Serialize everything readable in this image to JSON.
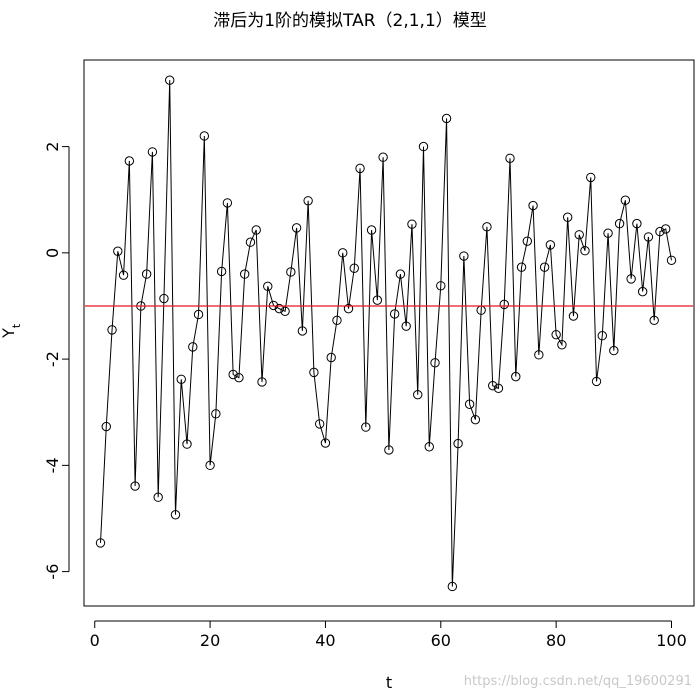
{
  "chart_data": {
    "type": "line",
    "title": "滞后为1阶的模拟TAR（2,1,1）模型",
    "xlabel": "t",
    "ylabel": "Y",
    "ylabel_subscript": "t",
    "xlim": [
      1,
      100
    ],
    "ylim": [
      -6.35,
      2.65
    ],
    "xticks": [
      0,
      20,
      40,
      60,
      80,
      100
    ],
    "yticks": [
      -6,
      -4,
      -2,
      0,
      2
    ],
    "grid": false,
    "legend": "none",
    "reference_line": {
      "y": -1,
      "color": "#e8181e"
    },
    "series": [
      {
        "x": [
          1,
          2,
          3,
          4,
          5,
          6,
          7,
          8,
          9,
          10,
          11,
          12,
          13,
          14,
          15,
          16,
          17,
          18,
          19,
          20,
          21,
          22,
          23,
          24,
          25,
          26,
          27,
          28,
          29,
          30,
          31,
          32,
          33,
          34,
          35,
          36,
          37,
          38,
          39,
          40,
          41,
          42,
          43,
          44,
          45,
          46,
          47,
          48,
          49,
          50,
          51,
          52,
          53,
          54,
          55,
          56,
          57,
          58,
          59,
          60,
          61,
          62,
          63,
          64,
          65,
          66,
          67,
          68,
          69,
          70,
          71,
          72,
          73,
          74,
          75,
          76,
          77,
          78,
          79,
          80,
          81,
          82,
          83,
          84,
          85,
          86,
          87,
          88,
          89,
          90,
          91,
          92,
          93,
          94,
          95,
          96,
          97,
          98,
          99,
          100
        ],
        "y": [
          -5.46,
          -3.27,
          -1.45,
          0.03,
          -0.42,
          1.73,
          -4.39,
          -1.0,
          -0.4,
          1.9,
          -4.6,
          -0.86,
          3.25,
          -4.93,
          -2.38,
          -3.6,
          -1.77,
          -1.16,
          2.2,
          -4.0,
          -3.03,
          -0.35,
          0.94,
          -2.29,
          -2.35,
          -0.4,
          0.2,
          0.43,
          -2.43,
          -0.63,
          -0.99,
          -1.05,
          -1.1,
          -0.36,
          0.47,
          -1.47,
          0.98,
          -2.25,
          -3.22,
          -3.58,
          -1.97,
          -1.27,
          0.0,
          -1.05,
          -0.29,
          1.59,
          -3.28,
          0.43,
          -0.89,
          1.8,
          -3.71,
          -1.15,
          -0.4,
          -1.38,
          0.54,
          -2.67,
          2.0,
          -3.65,
          -2.07,
          -0.62,
          2.53,
          -6.28,
          -3.59,
          -0.06,
          -2.85,
          -3.14,
          -1.08,
          0.49,
          -2.5,
          -2.55,
          -0.97,
          1.78,
          -2.33,
          -0.27,
          0.22,
          0.89,
          -1.92,
          -0.27,
          0.15,
          -1.54,
          -1.73,
          0.67,
          -1.19,
          0.34,
          0.04,
          1.42,
          -2.42,
          -1.56,
          0.37,
          -1.84,
          0.55,
          0.99,
          -0.49,
          0.55,
          -0.73,
          0.3,
          -1.27,
          0.4,
          0.45,
          -0.14
        ]
      }
    ]
  },
  "watermark": "https://blog.csdn.net/qq_19600291",
  "colors": {
    "line": "#000000",
    "reference": "#e8181e",
    "axis": "#000000"
  }
}
